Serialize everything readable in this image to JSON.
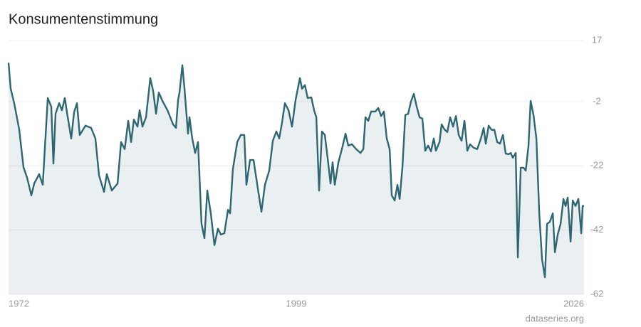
{
  "chart_data": {
    "type": "area",
    "title": "Konsumentenstimmung",
    "source": "dataseries.org",
    "color": "#2e6671",
    "grid": true,
    "xlim": [
      1972,
      2026
    ],
    "xticks": [
      1972,
      1999,
      2026
    ],
    "ylim": [
      -62,
      17
    ],
    "yticks": [
      17,
      -2,
      -22,
      -42,
      -62
    ],
    "x": [
      1972.0,
      1972.2,
      1972.53,
      1973.0,
      1973.4,
      1973.74,
      1974.14,
      1974.41,
      1974.87,
      1975.21,
      1975.48,
      1975.68,
      1976.01,
      1976.21,
      1976.41,
      1976.75,
      1977.01,
      1977.28,
      1977.48,
      1977.88,
      1978.15,
      1978.42,
      1978.68,
      1979.22,
      1979.75,
      1980.15,
      1980.49,
      1980.96,
      1981.22,
      1981.69,
      1982.23,
      1982.56,
      1982.9,
      1983.23,
      1983.5,
      1983.76,
      1984.1,
      1984.3,
      1984.57,
      1984.9,
      1985.3,
      1985.57,
      1985.84,
      1986.1,
      1986.44,
      1986.91,
      1987.44,
      1987.71,
      1987.91,
      1988.04,
      1988.31,
      1988.51,
      1988.84,
      1988.98,
      1989.24,
      1989.51,
      1989.78,
      1990.11,
      1990.38,
      1990.65,
      1990.98,
      1991.32,
      1991.65,
      1991.92,
      1992.25,
      1992.59,
      1992.79,
      1993.05,
      1993.46,
      1993.79,
      1994.12,
      1994.32,
      1994.66,
      1994.99,
      1995.39,
      1995.73,
      1996.06,
      1996.46,
      1996.8,
      1997.13,
      1997.4,
      1997.67,
      1997.93,
      1998.27,
      1998.6,
      1998.94,
      1999.34,
      1999.54,
      1999.81,
      2000.07,
      2000.41,
      2000.67,
      2000.88,
      2001.14,
      2001.41,
      2001.68,
      2001.94,
      2002.21,
      2002.41,
      2002.61,
      2002.95,
      2003.28,
      2003.62,
      2003.88,
      2004.22,
      2004.62,
      2005.02,
      2005.29,
      2005.49,
      2005.75,
      2006.02,
      2006.42,
      2006.69,
      2006.96,
      2007.22,
      2007.49,
      2007.76,
      2007.96,
      2008.23,
      2008.49,
      2008.7,
      2008.96,
      2009.23,
      2009.5,
      2009.76,
      2010.03,
      2010.3,
      2010.57,
      2010.83,
      2011.1,
      2011.37,
      2011.64,
      2011.9,
      2012.1,
      2012.44,
      2012.64,
      2012.91,
      2013.17,
      2013.44,
      2013.71,
      2013.98,
      2014.24,
      2014.51,
      2014.78,
      2015.05,
      2015.31,
      2015.65,
      2015.98,
      2016.32,
      2016.58,
      2016.78,
      2017.05,
      2017.32,
      2017.59,
      2017.85,
      2018.12,
      2018.39,
      2018.65,
      2018.92,
      2019.12,
      2019.32,
      2019.59,
      2019.79,
      2020.06,
      2020.33,
      2020.53,
      2020.79,
      2020.99,
      2021.26,
      2021.53,
      2021.8,
      2022.06,
      2022.33,
      2022.53,
      2022.8,
      2023.07,
      2023.27,
      2023.53,
      2023.8,
      2024.07,
      2024.27,
      2024.47,
      2024.74,
      2024.94,
      2025.2,
      2025.47,
      2025.74,
      2025.87,
      2026.0
    ],
    "values": [
      10.1,
      2,
      -2.5,
      -10.7,
      -22.4,
      -25.7,
      -31.2,
      -27.5,
      -24.6,
      -27.9,
      -12.4,
      -0.9,
      -3.6,
      -21.3,
      -5.8,
      -2.5,
      -4.7,
      -0.9,
      -5.3,
      -13.5,
      -5.3,
      -2.5,
      -12.4,
      -9.5,
      -10.2,
      -13.5,
      -25,
      -30.1,
      -24.6,
      -29.7,
      -27.5,
      -14.6,
      -16.8,
      -8,
      -14.6,
      -7.6,
      -9.8,
      -4.7,
      -9.8,
      -6.9,
      5.3,
      1.3,
      -5.8,
      0.8,
      -1.8,
      -4.7,
      -9.1,
      -10.2,
      -1.4,
      0.8,
      9.3,
      2,
      -12,
      -6.9,
      -13.5,
      -18,
      -14.6,
      -40.1,
      -44.5,
      -29.7,
      -36.8,
      -46.7,
      -41.6,
      -43.4,
      -43,
      -35.7,
      -36.8,
      -23,
      -14.6,
      -12.4,
      -12.4,
      -27.9,
      -20.2,
      -20.2,
      -29,
      -36.3,
      -27.9,
      -23.5,
      -14.2,
      -11.3,
      -13.5,
      -8.4,
      -2.5,
      -4.7,
      -9.8,
      -1.4,
      5.3,
      2,
      3.1,
      -0.9,
      -0.7,
      -4.7,
      -6.9,
      -29.7,
      -11.3,
      -12.4,
      -19.5,
      -27.5,
      -20.9,
      -27.9,
      -20.9,
      -16.8,
      -12,
      -15.7,
      -15.3,
      -16.8,
      -18,
      -16.8,
      -6.9,
      -8,
      -5.1,
      -5.1,
      -4,
      -6.5,
      -5.1,
      -13.5,
      -16.8,
      -31.2,
      -32.8,
      -27.9,
      -32.3,
      -22.4,
      -6.2,
      -5.8,
      -2,
      0.4,
      -3.6,
      -6.9,
      -7.3,
      -17.3,
      -15.7,
      -17.5,
      -13.5,
      -17.3,
      -14.6,
      -9.1,
      -10.7,
      -11.5,
      -6.9,
      -9.8,
      -6.5,
      -12.4,
      -14.2,
      -8,
      -17.3,
      -15.3,
      -16.4,
      -16.8,
      -13.5,
      -10.2,
      -15.1,
      -9.5,
      -10.8,
      -10.8,
      -14.6,
      -15.1,
      -12.4,
      -18.2,
      -18.4,
      -18,
      -19.5,
      -18,
      -50.5,
      -22.6,
      -22.6,
      -23.5,
      -15.7,
      -1.8,
      -6.2,
      -13.5,
      -36.8,
      -51.1,
      -56.7,
      -40.1,
      -39.4,
      -36.8,
      -48.9,
      -43.4,
      -40.1,
      -32.3,
      -34.5,
      -31.9,
      -45.6,
      -32.8,
      -34.5,
      -32.3,
      -43,
      -34.5,
      -34.5
    ]
  }
}
